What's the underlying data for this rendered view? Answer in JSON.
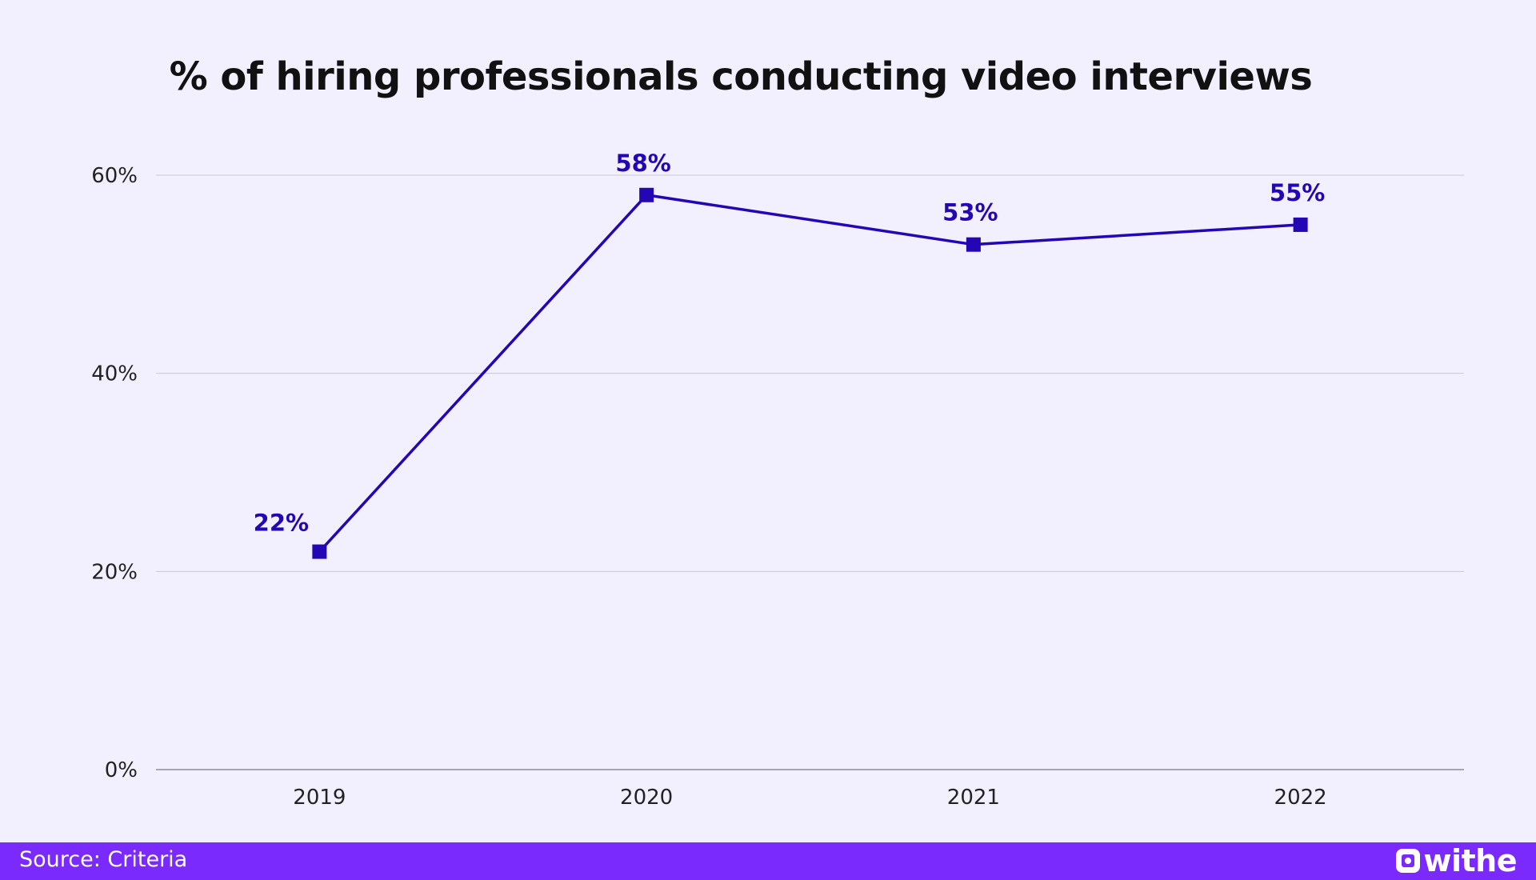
{
  "colors": {
    "background": "#f2f0fe",
    "series": "#2406b4",
    "grid": "#c9c7d4",
    "axis": "#8e8c99",
    "footer": "#7a2afc",
    "footer_text": "#ffffff"
  },
  "footer": {
    "source": "Source: Criteria",
    "brand": "withe",
    "brand_icon": "withe-logo-icon"
  },
  "chart_data": {
    "type": "line",
    "title": "% of hiring professionals conducting video interviews",
    "xlabel": "",
    "ylabel": "",
    "categories": [
      "2019",
      "2020",
      "2021",
      "2022"
    ],
    "series": [
      {
        "values": [
          22,
          58,
          53,
          55
        ],
        "data_labels": [
          "22%",
          "58%",
          "53%",
          "55%"
        ],
        "marker": "square"
      }
    ],
    "ylim": [
      0,
      60
    ],
    "yticks": [
      0,
      20,
      40,
      60
    ],
    "ytick_labels": [
      "0%",
      "20%",
      "40%",
      "60%"
    ],
    "grid": true,
    "legend": "none"
  }
}
